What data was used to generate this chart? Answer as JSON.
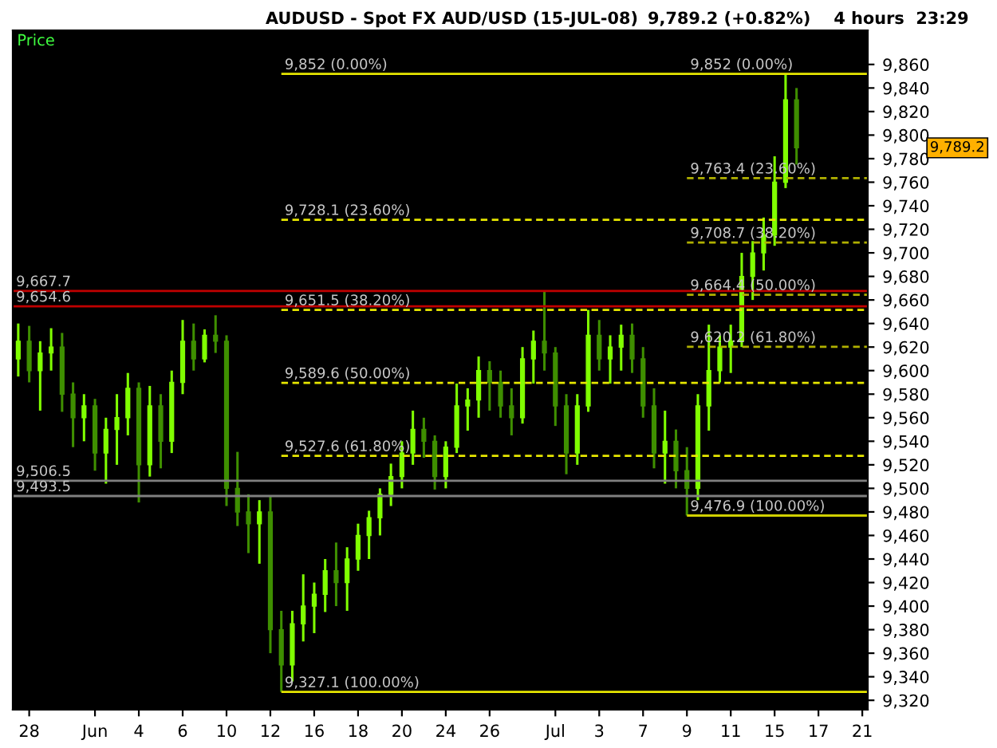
{
  "chart_data": {
    "type": "candlestick",
    "title": "AUDUSD - Spot FX AUD/USD (15-JUL-08)",
    "subtitle": "9,789.2 (+0.82%)    4 hours  23:29",
    "annotations": [
      "Price",
      "9,789.2",
      {
        "text": "9,852 (0.00%)",
        "y": 9852
      }
    ],
    "categories": [
      null,
      "28",
      null,
      null,
      null,
      null,
      null,
      "Jun",
      null,
      null,
      null,
      "4",
      null,
      null,
      null,
      "6",
      null,
      null,
      null,
      "10",
      null,
      null,
      null,
      "12",
      null,
      null,
      null,
      "16",
      null,
      null,
      null,
      "18",
      null,
      null,
      null,
      "20",
      null,
      null,
      null,
      "24",
      null,
      null,
      null,
      "26",
      null,
      null,
      null,
      null,
      null,
      "Jul",
      null,
      null,
      null,
      "3",
      null,
      null,
      null,
      "7",
      null,
      null,
      null,
      "9",
      null,
      null,
      null,
      "11",
      null,
      null,
      null,
      "15",
      null,
      null,
      null,
      "17",
      null,
      null,
      null,
      "21"
    ],
    "ohlc": [
      [
        9610,
        9640,
        9595,
        9625
      ],
      [
        9625,
        9638,
        9590,
        9600
      ],
      [
        9600,
        9625,
        9566,
        9615
      ],
      [
        9615,
        9636,
        9600,
        9620
      ],
      [
        9620,
        9632,
        9565,
        9580
      ],
      [
        9580,
        9590,
        9535,
        9560
      ],
      [
        9560,
        9580,
        9540,
        9570
      ],
      [
        9570,
        9576,
        9515,
        9530
      ],
      [
        9530,
        9560,
        9504,
        9550
      ],
      [
        9550,
        9580,
        9520,
        9560
      ],
      [
        9560,
        9598,
        9545,
        9585
      ],
      [
        9585,
        9590,
        9488,
        9520
      ],
      [
        9520,
        9587,
        9510,
        9570
      ],
      [
        9570,
        9580,
        9517,
        9540
      ],
      [
        9540,
        9600,
        9530,
        9590
      ],
      [
        9590,
        9643,
        9580,
        9625
      ],
      [
        9625,
        9640,
        9600,
        9610
      ],
      [
        9610,
        9635,
        9607,
        9630
      ],
      [
        9630,
        9647,
        9615,
        9625
      ],
      [
        9625,
        9630,
        9485,
        9500
      ],
      [
        9500,
        9531,
        9468,
        9480
      ],
      [
        9480,
        9495,
        9445,
        9470
      ],
      [
        9470,
        9490,
        9436,
        9480
      ],
      [
        9480,
        9494,
        9360,
        9380
      ],
      [
        9380,
        9396,
        9327.1,
        9350
      ],
      [
        9350,
        9396,
        9336,
        9385
      ],
      [
        9385,
        9427,
        9370,
        9400
      ],
      [
        9400,
        9420,
        9377,
        9410
      ],
      [
        9410,
        9440,
        9395,
        9430
      ],
      [
        9430,
        9454,
        9400,
        9420
      ],
      [
        9420,
        9450,
        9396,
        9440
      ],
      [
        9440,
        9470,
        9430,
        9460
      ],
      [
        9460,
        9481,
        9440,
        9475
      ],
      [
        9475,
        9500,
        9460,
        9495
      ],
      [
        9495,
        9521,
        9485,
        9510
      ],
      [
        9510,
        9540,
        9500,
        9530
      ],
      [
        9530,
        9566,
        9520,
        9550
      ],
      [
        9550,
        9560,
        9526,
        9540
      ],
      [
        9540,
        9545,
        9499,
        9510
      ],
      [
        9510,
        9540,
        9500,
        9535
      ],
      [
        9535,
        9589,
        9530,
        9570
      ],
      [
        9570,
        9585,
        9549,
        9575
      ],
      [
        9575,
        9612,
        9560,
        9600
      ],
      [
        9600,
        9608,
        9566,
        9590
      ],
      [
        9590,
        9600,
        9560,
        9570
      ],
      [
        9570,
        9585,
        9545,
        9560
      ],
      [
        9560,
        9620,
        9555,
        9610
      ],
      [
        9610,
        9634,
        9589,
        9625
      ],
      [
        9625,
        9667.7,
        9600,
        9615
      ],
      [
        9615,
        9620,
        9553,
        9570
      ],
      [
        9570,
        9580,
        9512,
        9530
      ],
      [
        9530,
        9580,
        9520,
        9570
      ],
      [
        9570,
        9651.5,
        9565,
        9630
      ],
      [
        9630,
        9643,
        9600,
        9610
      ],
      [
        9610,
        9630,
        9589,
        9620
      ],
      [
        9620,
        9639,
        9600,
        9630
      ],
      [
        9630,
        9640,
        9598,
        9610
      ],
      [
        9610,
        9620,
        9560,
        9570
      ],
      [
        9570,
        9585,
        9517,
        9530
      ],
      [
        9530,
        9566,
        9504,
        9540
      ],
      [
        9540,
        9550,
        9500,
        9515
      ],
      [
        9515,
        9535,
        9476.9,
        9500
      ],
      [
        9500,
        9580,
        9490,
        9570
      ],
      [
        9570,
        9639,
        9549,
        9600
      ],
      [
        9600,
        9630,
        9590,
        9620
      ],
      [
        9620,
        9639,
        9598,
        9625
      ],
      [
        9625,
        9700,
        9620,
        9680
      ],
      [
        9680,
        9710,
        9660,
        9700
      ],
      [
        9700,
        9730,
        9685,
        9715
      ],
      [
        9715,
        9782,
        9706,
        9760
      ],
      [
        9760,
        9852,
        9755,
        9830
      ],
      [
        9830,
        9840,
        9775,
        9789.2
      ],
      null,
      null,
      null,
      null,
      null,
      null
    ],
    "colors": [
      "#80ff00",
      "#3f8f00",
      "#80ff00",
      "#80ff00",
      "#3f8f00",
      "#3f8f00",
      "#80ff00",
      "#3f8f00",
      "#80ff00",
      "#80ff00",
      "#80ff00",
      "#3f8f00",
      "#80ff00",
      "#3f8f00",
      "#80ff00",
      "#80ff00",
      "#3f8f00",
      "#80ff00",
      "#3f8f00",
      "#3f8f00",
      "#3f8f00",
      "#3f8f00",
      "#80ff00",
      "#3f8f00",
      "#3f8f00",
      "#80ff00",
      "#80ff00",
      "#80ff00",
      "#80ff00",
      "#3f8f00",
      "#80ff00",
      "#80ff00",
      "#80ff00",
      "#80ff00",
      "#80ff00",
      "#80ff00",
      "#80ff00",
      "#3f8f00",
      "#3f8f00",
      "#80ff00",
      "#80ff00",
      "#80ff00",
      "#80ff00",
      "#3f8f00",
      "#3f8f00",
      "#3f8f00",
      "#80ff00",
      "#80ff00",
      "#3f8f00",
      "#3f8f00",
      "#3f8f00",
      "#80ff00",
      "#80ff00",
      "#3f8f00",
      "#80ff00",
      "#80ff00",
      "#3f8f00",
      "#3f8f00",
      "#3f8f00",
      "#80ff00",
      "#3f8f00",
      "#3f8f00",
      "#80ff00",
      "#80ff00",
      "#80ff00",
      "#80ff00",
      "#80ff00",
      "#80ff00",
      "#80ff00",
      "#80ff00",
      "#80ff00",
      "#3f8f00",
      null,
      null,
      null,
      null,
      null,
      null
    ],
    "ylim": [
      9312,
      9889
    ],
    "yticks": [
      {
        "value": 9320,
        "label": "9,320"
      },
      {
        "value": 9340,
        "label": "9,340"
      },
      {
        "value": 9360,
        "label": "9,360"
      },
      {
        "value": 9380,
        "label": "9,380"
      },
      {
        "value": 9400,
        "label": "9,400"
      },
      {
        "value": 9420,
        "label": "9,420"
      },
      {
        "value": 9440,
        "label": "9,440"
      },
      {
        "value": 9460,
        "label": "9,460"
      },
      {
        "value": 9480,
        "label": "9,480"
      },
      {
        "value": 9500,
        "label": "9,500"
      },
      {
        "value": 9520,
        "label": "9,520"
      },
      {
        "value": 9540,
        "label": "9,540"
      },
      {
        "value": 9560,
        "label": "9,560"
      },
      {
        "value": 9580,
        "label": "9,580"
      },
      {
        "value": 9600,
        "label": "9,600"
      },
      {
        "value": 9620,
        "label": "9,620"
      },
      {
        "value": 9640,
        "label": "9,640"
      },
      {
        "value": 9660,
        "label": "9,660"
      },
      {
        "value": 9680,
        "label": "9,680"
      },
      {
        "value": 9700,
        "label": "9,700"
      },
      {
        "value": 9720,
        "label": "9,720"
      },
      {
        "value": 9740,
        "label": "9,740"
      },
      {
        "value": 9760,
        "label": "9,760"
      },
      {
        "value": 9780,
        "label": "9,780"
      },
      {
        "value": 9800,
        "label": "9,800"
      },
      {
        "value": 9820,
        "label": "9,820"
      },
      {
        "value": 9840,
        "label": "9,840"
      },
      {
        "value": 9860,
        "label": "9,860"
      }
    ],
    "ref_lines": [
      {
        "axis": "y",
        "value": 9852,
        "label": "9,852 (0.00%)",
        "color": "#e6e600",
        "line_style": "solid"
      },
      {
        "axis": "y",
        "value": 9728.1,
        "label": "9,728.1 (23.60%)",
        "color": "#e6e600",
        "line_style": "dashed"
      },
      {
        "axis": "y",
        "value": 9651.5,
        "label": "9,651.5 (38.20%)",
        "color": "#e6e600",
        "line_style": "dashed"
      },
      {
        "axis": "y",
        "value": 9589.6,
        "label": "9,589.6 (50.00%)",
        "color": "#e6e600",
        "line_style": "dashed"
      },
      {
        "axis": "y",
        "value": 9527.6,
        "label": "9,527.6 (61.80%)",
        "color": "#e6e600",
        "line_style": "dashed"
      },
      {
        "axis": "y",
        "value": 9327.1,
        "label": "9,327.1 (100.00%)",
        "color": "#e6e600",
        "line_style": "solid"
      },
      {
        "axis": "y",
        "value": 9763.4,
        "label": "9,763.4 (23.60%)",
        "color": "#b0b000",
        "line_style": "dashed"
      },
      {
        "axis": "y",
        "value": 9708.7,
        "label": "9,708.7 (38.20%)",
        "color": "#b0b000",
        "line_style": "dashed"
      },
      {
        "axis": "y",
        "value": 9664.4,
        "label": "9,664.4 (50.00%)",
        "color": "#b0b000",
        "line_style": "dashed"
      },
      {
        "axis": "y",
        "value": 9620.2,
        "label": "9,620.2 (61.80%)",
        "color": "#b0b000",
        "line_style": "dashed"
      },
      {
        "axis": "y",
        "value": 9476.9,
        "label": "9,476.9 (100.00%)",
        "color": "#d0d000",
        "line_style": "solid"
      },
      {
        "axis": "y",
        "value": 9667.7,
        "label": "9,667.7",
        "color": "#c00000",
        "line_style": "solid"
      },
      {
        "axis": "y",
        "value": 9654.6,
        "label": "9,654.6",
        "color": "#c00000",
        "line_style": "solid"
      },
      {
        "axis": "y",
        "value": 9506.5,
        "label": "9,506.5",
        "color": "#808080",
        "line_style": "solid"
      },
      {
        "axis": "y",
        "value": 9493.5,
        "label": "9,493.5",
        "color": "#808080",
        "line_style": "solid"
      }
    ]
  }
}
